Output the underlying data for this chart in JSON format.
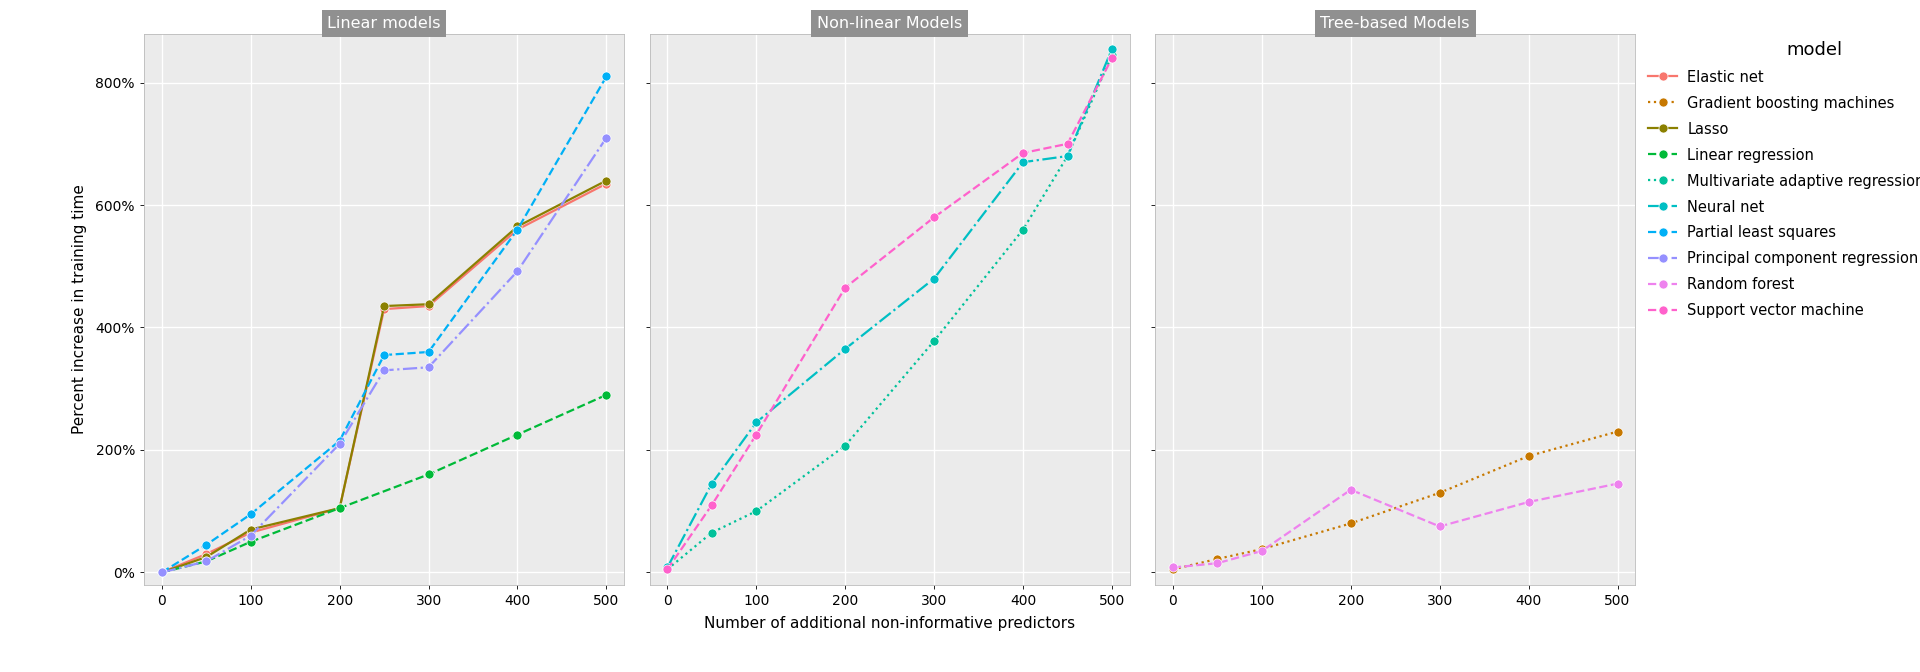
{
  "panels": [
    "Linear models",
    "Non-linear Models",
    "Tree-based Models"
  ],
  "xlabel": "Number of additional non-informative predictors",
  "ylabel": "Percent increase in training time",
  "ylim": [
    -20,
    880
  ],
  "yticks": [
    0,
    200,
    400,
    600,
    800
  ],
  "ytick_labels": [
    "0%",
    "200%",
    "400%",
    "600%",
    "800%"
  ],
  "xticks": [
    0,
    100,
    200,
    300,
    400,
    500
  ],
  "xlim": [
    -20,
    520
  ],
  "legend_title": "model",
  "plot_bg": "#EBEBEB",
  "fig_bg": "#FFFFFF",
  "panel_header_color": "#909090",
  "grid_color": "#FFFFFF",
  "series": {
    "Elastic net": {
      "color": "#F8766D",
      "linestyle": "-",
      "marker": "o",
      "panel": "Linear models",
      "x": [
        0,
        50,
        100,
        200,
        250,
        300,
        400,
        500
      ],
      "y": [
        0,
        30,
        65,
        105,
        430,
        435,
        560,
        635
      ]
    },
    "Lasso": {
      "color": "#8B8000",
      "linestyle": "-",
      "marker": "o",
      "panel": "Linear models",
      "x": [
        0,
        50,
        100,
        200,
        250,
        300,
        400,
        500
      ],
      "y": [
        0,
        25,
        70,
        105,
        435,
        438,
        565,
        640
      ]
    },
    "Linear regression": {
      "color": "#00BA38",
      "linestyle": "--",
      "marker": "o",
      "panel": "Linear models",
      "x": [
        0,
        50,
        100,
        200,
        300,
        400,
        500
      ],
      "y": [
        0,
        18,
        50,
        105,
        160,
        225,
        290
      ]
    },
    "Partial least squares": {
      "color": "#00B0F6",
      "linestyle": "--",
      "marker": "o",
      "panel": "Linear models",
      "x": [
        0,
        50,
        100,
        200,
        250,
        300,
        400,
        500
      ],
      "y": [
        0,
        45,
        95,
        215,
        355,
        360,
        560,
        810
      ]
    },
    "Principal component regression": {
      "color": "#9590FF",
      "linestyle": "-.",
      "marker": "o",
      "panel": "Linear models",
      "x": [
        0,
        50,
        100,
        200,
        250,
        300,
        400,
        500
      ],
      "y": [
        0,
        18,
        60,
        210,
        330,
        335,
        492,
        710
      ]
    },
    "Multivariate adaptive regression splines": {
      "color": "#00C19A",
      "linestyle": ":",
      "marker": "o",
      "panel": "Non-linear Models",
      "x": [
        0,
        50,
        100,
        200,
        300,
        400,
        450,
        500
      ],
      "y": [
        5,
        65,
        100,
        207,
        378,
        560,
        680,
        845
      ]
    },
    "Neural net": {
      "color": "#00BFC4",
      "linestyle": "-.",
      "marker": "o",
      "panel": "Non-linear Models",
      "x": [
        0,
        50,
        100,
        200,
        300,
        400,
        450,
        500
      ],
      "y": [
        8,
        145,
        245,
        365,
        480,
        670,
        680,
        855
      ]
    },
    "Support vector machine": {
      "color": "#FF61CC",
      "linestyle": "--",
      "marker": "o",
      "panel": "Non-linear Models",
      "x": [
        0,
        50,
        100,
        200,
        300,
        400,
        450,
        500
      ],
      "y": [
        5,
        110,
        225,
        465,
        580,
        685,
        700,
        840
      ]
    },
    "Gradient boosting machines": {
      "color": "#C77800",
      "linestyle": ":",
      "marker": "o",
      "panel": "Tree-based Models",
      "x": [
        0,
        50,
        100,
        200,
        300,
        400,
        500
      ],
      "y": [
        5,
        22,
        38,
        80,
        130,
        190,
        230
      ]
    },
    "Random forest": {
      "color": "#EE82EE",
      "linestyle": "--",
      "marker": "o",
      "panel": "Tree-based Models",
      "x": [
        0,
        50,
        100,
        200,
        300,
        400,
        500
      ],
      "y": [
        8,
        15,
        35,
        135,
        75,
        115,
        145
      ]
    }
  },
  "legend_order": [
    "Elastic net",
    "Gradient boosting machines",
    "Lasso",
    "Linear regression",
    "Multivariate adaptive regression splines",
    "Neural net",
    "Partial least squares",
    "Principal component regression",
    "Random forest",
    "Support vector machine"
  ]
}
